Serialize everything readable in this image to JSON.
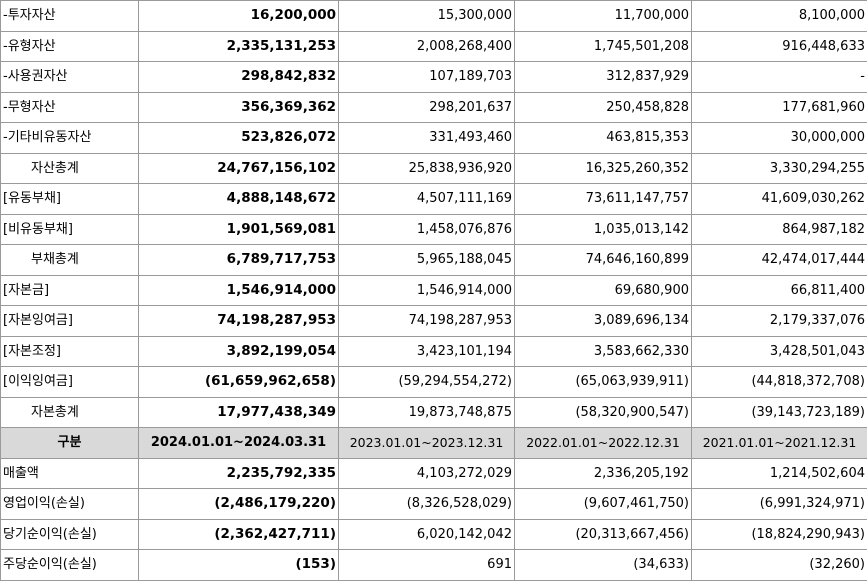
{
  "table": {
    "balance_rows": [
      {
        "label": "-투자자산",
        "values": [
          "16,200,000",
          "15,300,000",
          "11,700,000",
          "8,100,000"
        ]
      },
      {
        "label": "-유형자산",
        "values": [
          "2,335,131,253",
          "2,008,268,400",
          "1,745,501,208",
          "916,448,633"
        ]
      },
      {
        "label": "-사용권자산",
        "values": [
          "298,842,832",
          "107,189,703",
          "312,837,929",
          "-"
        ]
      },
      {
        "label": "-무형자산",
        "values": [
          "356,369,362",
          "298,201,637",
          "250,458,828",
          "177,681,960"
        ]
      },
      {
        "label": "-기타비유동자산",
        "values": [
          "523,826,072",
          "331,493,460",
          "463,815,353",
          "30,000,000"
        ]
      },
      {
        "label": "자산총계",
        "indent": true,
        "values": [
          "24,767,156,102",
          "25,838,936,920",
          "16,325,260,352",
          "3,330,294,255"
        ]
      },
      {
        "label": "[유동부채]",
        "values": [
          "4,888,148,672",
          "4,507,111,169",
          "73,611,147,757",
          "41,609,030,262"
        ]
      },
      {
        "label": "[비유동부채]",
        "values": [
          "1,901,569,081",
          "1,458,076,876",
          "1,035,013,142",
          "864,987,182"
        ]
      },
      {
        "label": "부채총계",
        "indent": true,
        "values": [
          "6,789,717,753",
          "5,965,188,045",
          "74,646,160,899",
          "42,474,017,444"
        ]
      },
      {
        "label": "[자본금]",
        "values": [
          "1,546,914,000",
          "1,546,914,000",
          "69,680,900",
          "66,811,400"
        ]
      },
      {
        "label": "[자본잉여금]",
        "values": [
          "74,198,287,953",
          "74,198,287,953",
          "3,089,696,134",
          "2,179,337,076"
        ]
      },
      {
        "label": "[자본조정]",
        "values": [
          "3,892,199,054",
          "3,423,101,194",
          "3,583,662,330",
          "3,428,501,043"
        ]
      },
      {
        "label": "[이익잉여금]",
        "values": [
          "(61,659,962,658)",
          "(59,294,554,272)",
          "(65,063,939,911)",
          "(44,818,372,708)"
        ]
      },
      {
        "label": "자본총계",
        "indent": true,
        "values": [
          "17,977,438,349",
          "19,873,748,875",
          "(58,320,900,547)",
          "(39,143,723,189)"
        ]
      }
    ],
    "header": {
      "label": "구분",
      "periods": [
        "2024.01.01~2024.03.31",
        "2023.01.01~2023.12.31",
        "2022.01.01~2022.12.31",
        "2021.01.01~2021.12.31"
      ]
    },
    "income_rows": [
      {
        "label": "매출액",
        "values": [
          "2,235,792,335",
          "4,103,272,029",
          "2,336,205,192",
          "1,214,502,604"
        ]
      },
      {
        "label": "영업이익(손실)",
        "values": [
          "(2,486,179,220)",
          "(8,326,528,029)",
          "(9,607,461,750)",
          "(6,991,324,971)"
        ]
      },
      {
        "label": "당기순이익(손실)",
        "values": [
          "(2,362,427,711)",
          "6,020,142,042",
          "(20,313,667,456)",
          "(18,824,290,943)"
        ]
      },
      {
        "label": "주당순이익(손실)",
        "values": [
          "(153)",
          "691",
          "(34,633)",
          "(32,260)"
        ]
      }
    ]
  }
}
